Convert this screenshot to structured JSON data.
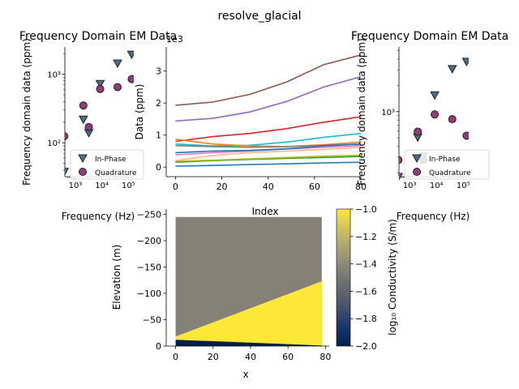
{
  "suptitle": "resolve_glacial",
  "colors": {
    "inphase_fill": "#4f6d87",
    "quadrature_fill": "#933a78",
    "marker_edge": "#222222",
    "section_resistive": "#858176",
    "section_conductive": "#fde838",
    "section_bedrock": "#00204c"
  },
  "chart_data": [
    {
      "type": "scatter",
      "panel": "left",
      "title": "Frequency Domain EM Data",
      "xlabel": "Frequency (Hz)",
      "ylabel": "Frequency domain data (ppm)",
      "xscale": "log",
      "yscale": "log",
      "xlim": [
        400,
        160000
      ],
      "ylim": [
        32,
        2500
      ],
      "xticks": [
        {
          "v": 1000,
          "label": "10³"
        },
        {
          "v": 10000,
          "label": "10⁴"
        },
        {
          "v": 100000,
          "label": "10⁵"
        }
      ],
      "yticks": [
        {
          "v": 100,
          "label": "10²"
        },
        {
          "v": 1000,
          "label": "10³"
        }
      ],
      "legend": {
        "position": "lower-right",
        "entries": [
          "In-Phase",
          "Quadrature"
        ]
      },
      "series": [
        {
          "name": "In-Phase",
          "marker": "triangle-down",
          "x": [
            380,
            2000,
            3200,
            8600,
            39000,
            133000
          ],
          "y": [
            38,
            220,
            140,
            730,
            1450,
            1950
          ]
        },
        {
          "name": "Quadrature",
          "marker": "circle",
          "x": [
            380,
            2000,
            3200,
            8600,
            39000,
            133000
          ],
          "y": [
            125,
            350,
            170,
            610,
            650,
            850
          ]
        }
      ]
    },
    {
      "type": "line",
      "panel": "middle",
      "xlabel": "Index",
      "ylabel": "Data (ppm)",
      "offset_label": "1e3",
      "xlim": [
        -4,
        80
      ],
      "ylim": [
        -0.3,
        3.75
      ],
      "xticks": [
        0,
        20,
        40,
        60,
        80
      ],
      "yticks": [
        0,
        1,
        2,
        3
      ],
      "grid": false,
      "series": [
        {
          "color": "#8c564b",
          "values": [
            1.93,
            2.03,
            2.27,
            2.66,
            3.2,
            3.5
          ]
        },
        {
          "color": "#9467bd",
          "values": [
            1.44,
            1.52,
            1.72,
            2.05,
            2.5,
            2.82
          ]
        },
        {
          "color": "#d62728",
          "values": [
            0.8,
            0.95,
            1.05,
            1.2,
            1.4,
            1.57
          ]
        },
        {
          "color": "#17becf",
          "values": [
            0.72,
            0.66,
            0.68,
            0.78,
            0.93,
            1.05
          ]
        },
        {
          "color": "#ff7f0e",
          "values": [
            0.87,
            0.72,
            0.66,
            0.64,
            0.7,
            0.78
          ]
        },
        {
          "color": "#7f7f7f",
          "values": [
            0.67,
            0.64,
            0.62,
            0.64,
            0.68,
            0.72
          ]
        },
        {
          "color": "#e377c2",
          "values": [
            0.38,
            0.45,
            0.5,
            0.56,
            0.62,
            0.67
          ]
        },
        {
          "color": "#1f77b4",
          "values": [
            0.45,
            0.5,
            0.52,
            0.57,
            0.66,
            0.72
          ]
        },
        {
          "color": "#ffbb78",
          "values": [
            0.2,
            0.36,
            0.45,
            0.5,
            0.55,
            0.62
          ]
        },
        {
          "color": "#2ca02c",
          "values": [
            0.15,
            0.2,
            0.24,
            0.27,
            0.3,
            0.33
          ]
        },
        {
          "color": "#bcbd22",
          "values": [
            0.18,
            0.22,
            0.26,
            0.3,
            0.34,
            0.37
          ]
        },
        {
          "color": "#1f77b4",
          "values": [
            0.03,
            0.05,
            0.08,
            0.1,
            0.13,
            0.15
          ]
        }
      ]
    },
    {
      "type": "scatter",
      "panel": "right",
      "title": "Frequency Domain EM Data",
      "xlabel": "Frequency (Hz)",
      "ylabel": "Frequency domain data (ppm)",
      "xscale": "log",
      "yscale": "log",
      "xlim": [
        400,
        160000
      ],
      "ylim": [
        180,
        5500
      ],
      "xticks": [
        {
          "v": 1000,
          "label": "10³"
        },
        {
          "v": 10000,
          "label": "10⁴"
        },
        {
          "v": 100000,
          "label": "10⁵"
        }
      ],
      "yticks": [
        {
          "v": 1000,
          "label": "10³"
        }
      ],
      "legend": {
        "position": "lower-right",
        "entries": [
          "In-Phase",
          "Quadrature"
        ]
      },
      "series": [
        {
          "name": "In-Phase",
          "marker": "triangle-down",
          "x": [
            380,
            2000,
            3200,
            8600,
            39000,
            133000
          ],
          "y": [
            180,
            510,
            310,
            1550,
            3100,
            3750
          ]
        },
        {
          "name": "Quadrature",
          "marker": "circle",
          "x": [
            380,
            2000,
            3200,
            8600,
            39000,
            133000
          ],
          "y": [
            280,
            590,
            280,
            930,
            820,
            530
          ]
        }
      ]
    },
    {
      "type": "heatmap",
      "panel": "section",
      "xlabel": "x",
      "ylabel": "Elevation (m)",
      "xlim": [
        -5,
        82
      ],
      "ylim": [
        0,
        -260
      ],
      "xticks": [
        0,
        20,
        40,
        60,
        80
      ],
      "yticks": [
        0,
        -50,
        -100,
        -150,
        -200,
        -250
      ],
      "x_extent": [
        0,
        78
      ],
      "top_elevation": -245,
      "conductive_top": {
        "x": [
          0,
          78
        ],
        "elevation": [
          -18,
          -123
        ]
      },
      "bedrock_top": {
        "x": [
          0,
          78
        ],
        "elevation": [
          -12,
          -1
        ]
      },
      "colorbar": {
        "label": "log₁₀ Conductivity (S/m)",
        "range": [
          -2.0,
          -1.0
        ],
        "ticks": [
          -2.0,
          -1.8,
          -1.6,
          -1.4,
          -1.2,
          -1.0
        ],
        "tick_labels": [
          "−2.0",
          "−1.8",
          "−1.6",
          "−1.4",
          "−1.2",
          "−1.0"
        ]
      }
    }
  ]
}
